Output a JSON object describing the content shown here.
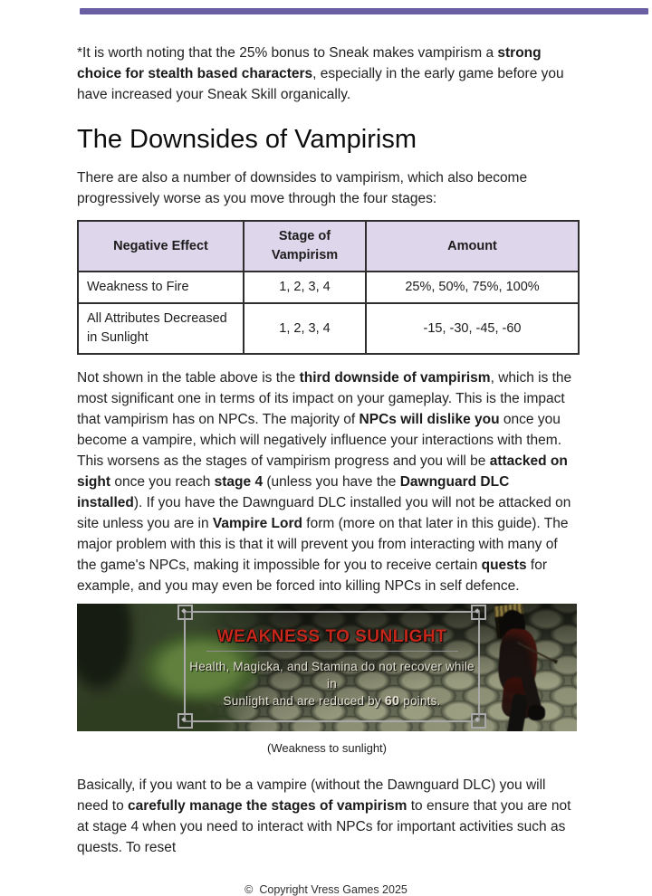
{
  "page": {
    "accent_bar_color": "#6a5fa3",
    "background": "#ffffff"
  },
  "intro_paragraph": {
    "runs": [
      {
        "text": "*It is worth noting that the 25% bonus to Sneak makes vampirism a ",
        "bold": false
      },
      {
        "text": "strong choice for stealth based characters",
        "bold": true
      },
      {
        "text": ", especially in the early game before you have increased your Sneak Skill organically.",
        "bold": false
      }
    ]
  },
  "section": {
    "heading": "The Downsides of Vampirism",
    "lead_paragraph": "There are also a number of downsides to vampirism, which also become progressively worse as you move through the four stages:"
  },
  "table": {
    "header_bg": "#ded6eb",
    "columns": [
      "Negative Effect",
      "Stage of Vampirism",
      "Amount"
    ],
    "rows": [
      [
        "Weakness to Fire",
        "1, 2, 3, 4",
        "25%, 50%, 75%, 100%"
      ],
      [
        "All Attributes Decreased in Sunlight",
        "1, 2, 3, 4",
        "-15, -30, -45, -60"
      ]
    ]
  },
  "body_paragraph": {
    "runs": [
      {
        "text": "Not shown in the table above is the ",
        "bold": false
      },
      {
        "text": "third downside of vampirism",
        "bold": true
      },
      {
        "text": ", which is the most significant one in terms of its impact on your gameplay. This is the impact that vampirism has on NPCs. The majority of ",
        "bold": false
      },
      {
        "text": "NPCs will dislike you",
        "bold": true
      },
      {
        "text": " once you become a vampire, which will negatively influence your interactions with them. This worsens as the stages of vampirism progress and you will be ",
        "bold": false
      },
      {
        "text": "attacked on sight",
        "bold": true
      },
      {
        "text": " once you reach ",
        "bold": false
      },
      {
        "text": "stage 4",
        "bold": true
      },
      {
        "text": " (unless you have the ",
        "bold": false
      },
      {
        "text": "Dawnguard DLC installed",
        "bold": true
      },
      {
        "text": "). If you have the Dawnguard DLC installed you will not be attacked on site unless you are in ",
        "bold": false
      },
      {
        "text": "Vampire Lord",
        "bold": true
      },
      {
        "text": " form (more on that later in this guide). The major problem with this is that it will prevent you from interacting with many of the game's NPCs, making it impossible for you to receive certain ",
        "bold": false
      },
      {
        "text": "quests",
        "bold": true
      },
      {
        "text": " for example, and you may even be forced into killing NPCs in self defence.",
        "bold": false
      }
    ]
  },
  "game_screenshot": {
    "title": "WEAKNESS TO SUNLIGHT",
    "title_color": "#c5271b",
    "line1": "Health, Magicka, and Stamina do not recover while in",
    "line2_pre": "Sunlight and are reduced by ",
    "line2_value": "60",
    "line2_post": " points.",
    "caption": "(Weakness to sunlight)"
  },
  "closing_paragraph": {
    "runs": [
      {
        "text": "Basically, if you want to be a vampire (without the Dawnguard DLC) you will need to ",
        "bold": false
      },
      {
        "text": "carefully manage the stages of vampirism",
        "bold": true
      },
      {
        "text": " to ensure that you are not at stage 4 when you need to interact with NPCs for important activities such as quests. To reset",
        "bold": false
      }
    ]
  },
  "footer": {
    "symbol": "©",
    "text": "Copyright Vress Games 2025"
  }
}
